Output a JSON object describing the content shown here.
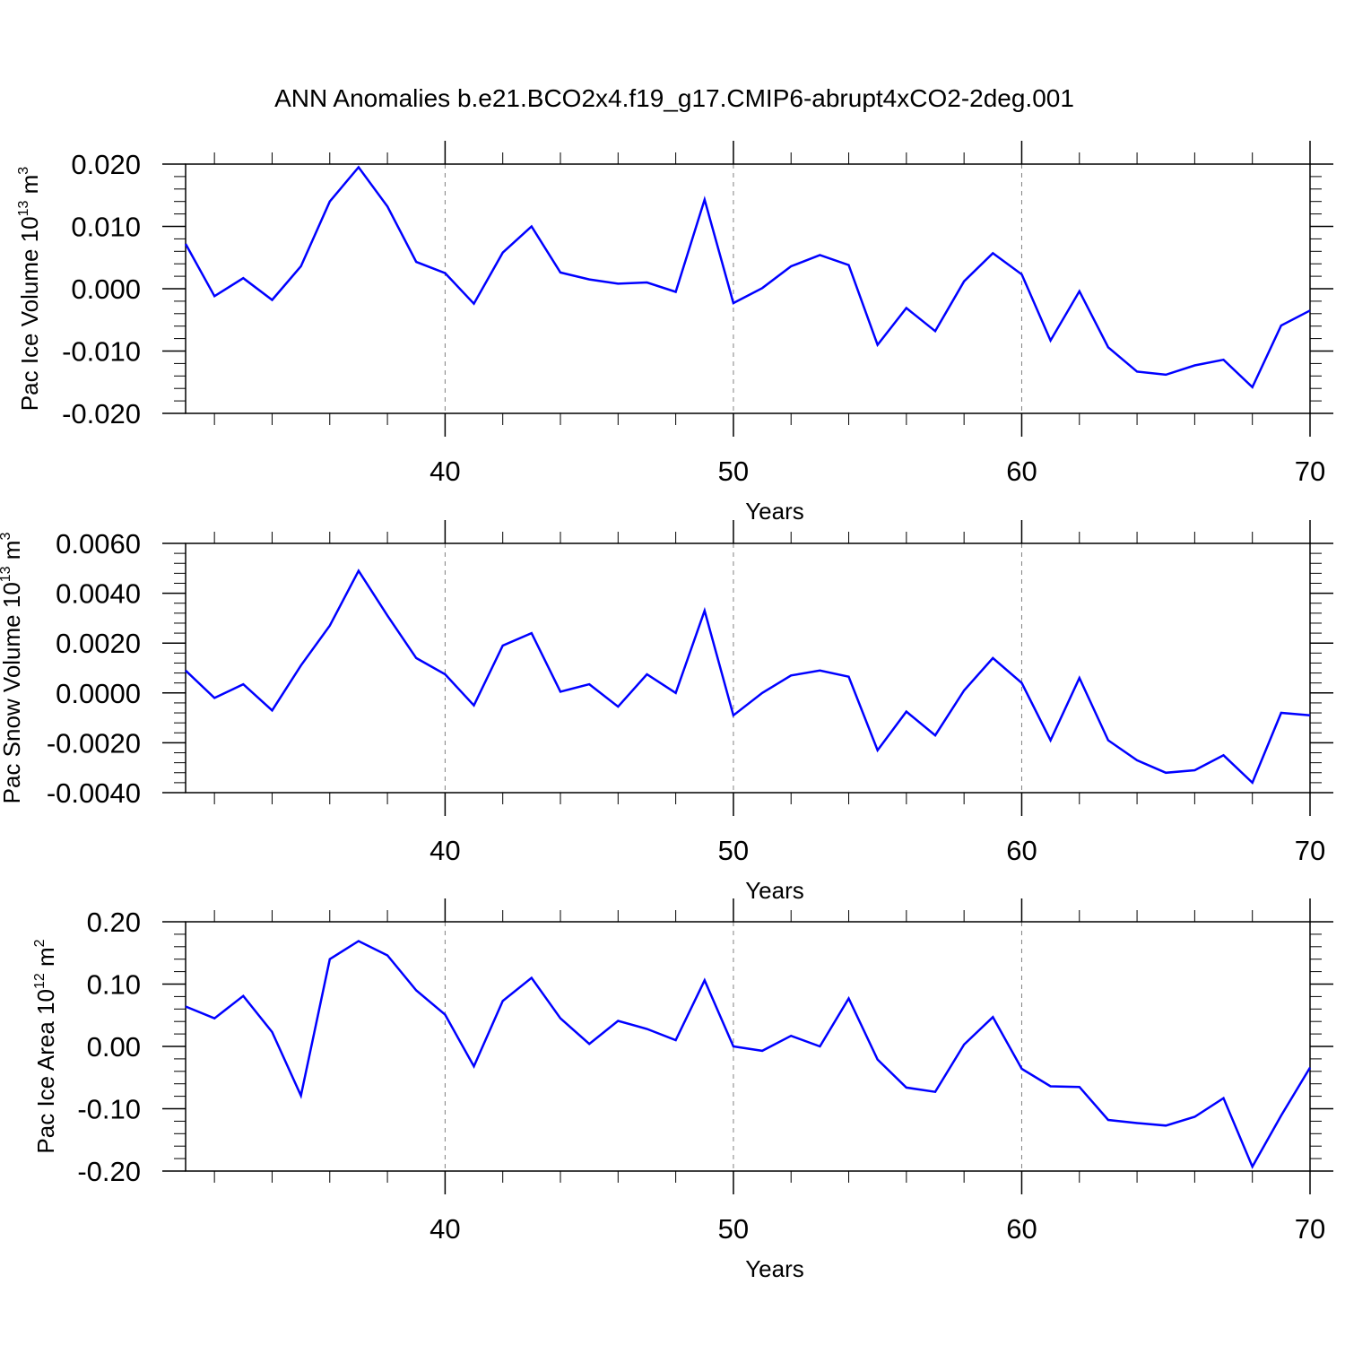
{
  "title": "ANN Anomalies b.e21.BCO2x4.f19_g17.CMIP6-abrupt4xCO2-2deg.001",
  "colors": {
    "series": "#0000ff",
    "axis": "#000000",
    "grid": "#808080"
  },
  "chart_data": [
    {
      "type": "line",
      "name": "pac-ice-volume",
      "xlabel": "Years",
      "ylabel": {
        "prefix": "Pac Ice Volume 10",
        "exp": "13",
        "unit": " m",
        "unit_exp": "3"
      },
      "xlim": [
        31,
        70
      ],
      "ylim": [
        -0.02,
        0.02
      ],
      "xticks": [
        40,
        50,
        60,
        70
      ],
      "xtick_labels": [
        "40",
        "50",
        "60",
        "70"
      ],
      "yticks": [
        0.02,
        0.01,
        0.0,
        -0.01,
        -0.02
      ],
      "ytick_labels": [
        "0.020",
        "0.010",
        "0.000",
        "-0.010",
        "-0.020"
      ],
      "x": [
        31,
        32,
        33,
        34,
        35,
        36,
        37,
        38,
        39,
        40,
        41,
        42,
        43,
        44,
        45,
        46,
        47,
        48,
        49,
        50,
        51,
        52,
        53,
        54,
        55,
        56,
        57,
        58,
        59,
        60,
        61,
        62,
        63,
        64,
        65,
        66,
        67,
        68,
        69,
        70
      ],
      "y": [
        0.0072,
        -0.0012,
        0.0017,
        -0.0018,
        0.0036,
        0.014,
        0.0195,
        0.0132,
        0.0043,
        0.0025,
        -0.0024,
        0.0058,
        0.01,
        0.0026,
        0.0015,
        0.0008,
        0.001,
        -0.0005,
        0.0143,
        -0.0023,
        0.0001,
        0.0036,
        0.0054,
        0.0038,
        -0.009,
        -0.0031,
        -0.0068,
        0.0012,
        0.0057,
        0.0023,
        -0.0083,
        -0.0004,
        -0.0094,
        -0.0133,
        -0.0138,
        -0.0123,
        -0.0114,
        -0.0158,
        -0.0059,
        -0.0035
      ]
    },
    {
      "type": "line",
      "name": "pac-snow-volume",
      "xlabel": "Years",
      "ylabel": {
        "prefix": "Pac Snow Volume 10",
        "exp": "13",
        "unit": " m",
        "unit_exp": "3"
      },
      "xlim": [
        31,
        70
      ],
      "ylim": [
        -0.004,
        0.006
      ],
      "xticks": [
        40,
        50,
        60,
        70
      ],
      "xtick_labels": [
        "40",
        "50",
        "60",
        "70"
      ],
      "yticks": [
        0.006,
        0.004,
        0.002,
        0.0,
        -0.002,
        -0.004
      ],
      "ytick_labels": [
        "0.0060",
        "0.0040",
        "0.0020",
        "0.0000",
        "-0.0020",
        "-0.0040"
      ],
      "x": [
        31,
        32,
        33,
        34,
        35,
        36,
        37,
        38,
        39,
        40,
        41,
        42,
        43,
        44,
        45,
        46,
        47,
        48,
        49,
        50,
        51,
        52,
        53,
        54,
        55,
        56,
        57,
        58,
        59,
        60,
        61,
        62,
        63,
        64,
        65,
        66,
        67,
        68,
        69,
        70
      ],
      "y": [
        0.0009,
        -0.0002,
        0.00035,
        -0.0007,
        0.0011,
        0.0027,
        0.0049,
        0.0031,
        0.0014,
        0.00075,
        -0.0005,
        0.0019,
        0.0024,
        5e-05,
        0.00035,
        -0.00055,
        0.00075,
        0.0,
        0.0033,
        -0.0009,
        0.0,
        0.0007,
        0.0009,
        0.00065,
        -0.0023,
        -0.00075,
        -0.0017,
        0.0001,
        0.0014,
        0.0004,
        -0.0019,
        0.0006,
        -0.0019,
        -0.0027,
        -0.0032,
        -0.0031,
        -0.0025,
        -0.0036,
        -0.0008,
        -0.0009
      ]
    },
    {
      "type": "line",
      "name": "pac-ice-area",
      "xlabel": "Years",
      "ylabel": {
        "prefix": "Pac Ice Area 10",
        "exp": "12",
        "unit": " m",
        "unit_exp": "2"
      },
      "xlim": [
        31,
        70
      ],
      "ylim": [
        -0.2,
        0.2
      ],
      "xticks": [
        40,
        50,
        60,
        70
      ],
      "xtick_labels": [
        "40",
        "50",
        "60",
        "70"
      ],
      "yticks": [
        0.2,
        0.1,
        0.0,
        -0.1,
        -0.2
      ],
      "ytick_labels": [
        "0.20",
        "0.10",
        "0.00",
        "-0.10",
        "-0.20"
      ],
      "x": [
        31,
        32,
        33,
        34,
        35,
        36,
        37,
        38,
        39,
        40,
        41,
        42,
        43,
        44,
        45,
        46,
        47,
        48,
        49,
        50,
        51,
        52,
        53,
        54,
        55,
        56,
        57,
        58,
        59,
        60,
        61,
        62,
        63,
        64,
        65,
        66,
        67,
        68,
        69,
        70
      ],
      "y": [
        0.064,
        0.045,
        0.081,
        0.023,
        -0.079,
        0.14,
        0.169,
        0.146,
        0.09,
        0.051,
        -0.032,
        0.073,
        0.11,
        0.045,
        0.004,
        0.041,
        0.028,
        0.01,
        0.106,
        0.0,
        -0.007,
        0.017,
        0.0,
        0.077,
        -0.021,
        -0.066,
        -0.073,
        0.003,
        0.047,
        -0.036,
        -0.064,
        -0.065,
        -0.118,
        -0.123,
        -0.127,
        -0.113,
        -0.083,
        -0.193,
        -0.111,
        -0.034
      ]
    }
  ]
}
